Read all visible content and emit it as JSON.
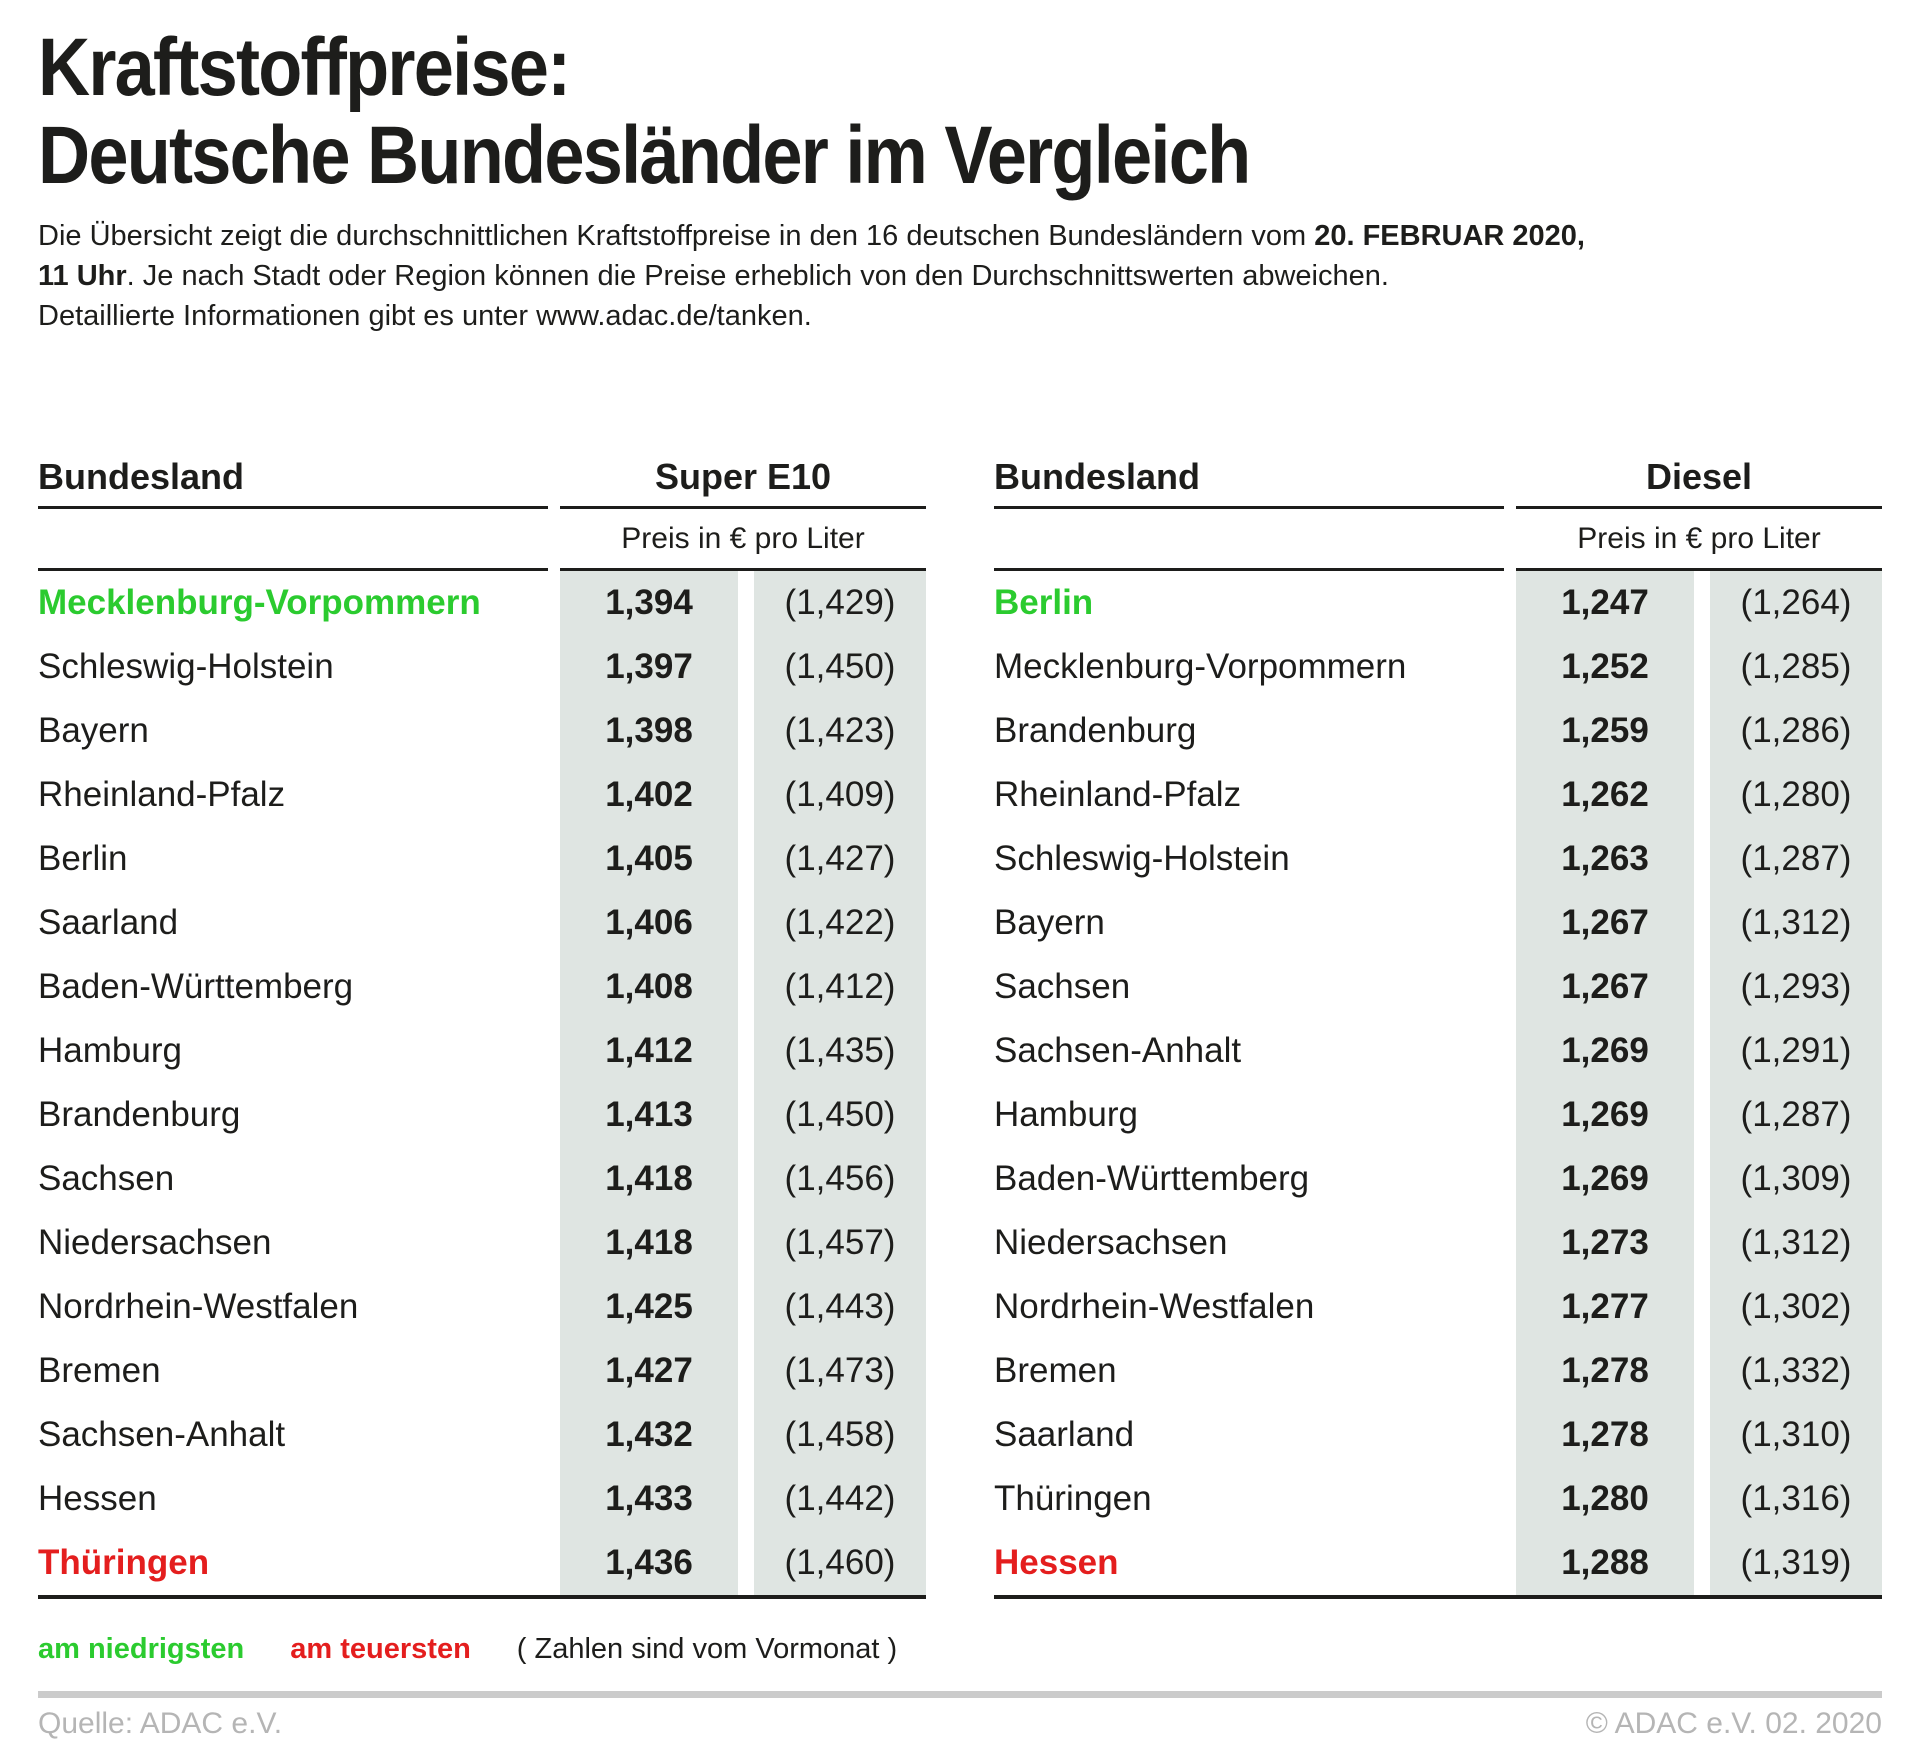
{
  "title": {
    "line1": "Kraftstoffpreise:",
    "line2": "Deutsche Bundesländer im Vergleich"
  },
  "intro": {
    "line1_normal": "Die Übersicht zeigt die durchschnittlichen Kraftstoffpreise in den 16 deutschen Bundesländern vom ",
    "line1_bold": "20. FEBRUAR 2020,",
    "line2_bold": "11 Uhr",
    "line2_normal": ". Je nach Stadt oder Region können die Preise erheblich von den Durchschnittswerten abweichen.",
    "line3_normal": "Detaillierte Informationen gibt es unter www.adac.de/tanken."
  },
  "chart_data": [
    {
      "type": "table",
      "title": "Super E10",
      "bundesland_label": "Bundesland",
      "price_unit_label": "Preis in € pro Liter",
      "note": "Werte in Klammern sind vom Vormonat",
      "rows": [
        {
          "state": "Mecklenburg-Vorpommern",
          "price": "1,394",
          "prev_month": "(1,429)",
          "highlight": "lowest"
        },
        {
          "state": "Schleswig-Holstein",
          "price": "1,397",
          "prev_month": "(1,450)"
        },
        {
          "state": "Bayern",
          "price": "1,398",
          "prev_month": "(1,423)"
        },
        {
          "state": "Rheinland-Pfalz",
          "price": "1,402",
          "prev_month": "(1,409)"
        },
        {
          "state": "Berlin",
          "price": "1,405",
          "prev_month": "(1,427)"
        },
        {
          "state": "Saarland",
          "price": "1,406",
          "prev_month": "(1,422)"
        },
        {
          "state": "Baden-Württemberg",
          "price": "1,408",
          "prev_month": "(1,412)"
        },
        {
          "state": "Hamburg",
          "price": "1,412",
          "prev_month": "(1,435)"
        },
        {
          "state": "Brandenburg",
          "price": "1,413",
          "prev_month": "(1,450)"
        },
        {
          "state": "Sachsen",
          "price": "1,418",
          "prev_month": "(1,456)"
        },
        {
          "state": "Niedersachsen",
          "price": "1,418",
          "prev_month": "(1,457)"
        },
        {
          "state": "Nordrhein-Westfalen",
          "price": "1,425",
          "prev_month": "(1,443)"
        },
        {
          "state": "Bremen",
          "price": "1,427",
          "prev_month": "(1,473)"
        },
        {
          "state": "Sachsen-Anhalt",
          "price": "1,432",
          "prev_month": "(1,458)"
        },
        {
          "state": "Hessen",
          "price": "1,433",
          "prev_month": "(1,442)"
        },
        {
          "state": "Thüringen",
          "price": "1,436",
          "prev_month": "(1,460)",
          "highlight": "highest"
        }
      ]
    },
    {
      "type": "table",
      "title": "Diesel",
      "bundesland_label": "Bundesland",
      "price_unit_label": "Preis in € pro Liter",
      "note": "Werte in Klammern sind vom Vormonat",
      "rows": [
        {
          "state": "Berlin",
          "price": "1,247",
          "prev_month": "(1,264)",
          "highlight": "lowest"
        },
        {
          "state": "Mecklenburg-Vorpommern",
          "price": "1,252",
          "prev_month": "(1,285)"
        },
        {
          "state": "Brandenburg",
          "price": "1,259",
          "prev_month": "(1,286)"
        },
        {
          "state": "Rheinland-Pfalz",
          "price": "1,262",
          "prev_month": "(1,280)"
        },
        {
          "state": "Schleswig-Holstein",
          "price": "1,263",
          "prev_month": "(1,287)"
        },
        {
          "state": "Bayern",
          "price": "1,267",
          "prev_month": "(1,312)"
        },
        {
          "state": "Sachsen",
          "price": "1,267",
          "prev_month": "(1,293)"
        },
        {
          "state": "Sachsen-Anhalt",
          "price": "1,269",
          "prev_month": "(1,291)"
        },
        {
          "state": "Hamburg",
          "price": "1,269",
          "prev_month": "(1,287)"
        },
        {
          "state": "Baden-Württemberg",
          "price": "1,269",
          "prev_month": "(1,309)"
        },
        {
          "state": "Niedersachsen",
          "price": "1,273",
          "prev_month": "(1,312)"
        },
        {
          "state": "Nordrhein-Westfalen",
          "price": "1,277",
          "prev_month": "(1,302)"
        },
        {
          "state": "Bremen",
          "price": "1,278",
          "prev_month": "(1,332)"
        },
        {
          "state": "Saarland",
          "price": "1,278",
          "prev_month": "(1,310)"
        },
        {
          "state": "Thüringen",
          "price": "1,280",
          "prev_month": "(1,316)"
        },
        {
          "state": "Hessen",
          "price": "1,288",
          "prev_month": "(1,319)",
          "highlight": "highest"
        }
      ]
    }
  ],
  "legend": {
    "lowest_label": "am niedrigsten",
    "highest_label": "am teuersten",
    "note": "( Zahlen sind vom Vormonat )"
  },
  "footer": {
    "source": "Quelle: ADAC e.V.",
    "copyright": "© ADAC e.V. 02. 2020"
  },
  "colors": {
    "lowest": "#2bcb2f",
    "highest": "#e41e1e",
    "price_col_bg": "#dfe5e2",
    "footer_gray": "#b5b5b5",
    "line_black": "#1d1d1b"
  }
}
